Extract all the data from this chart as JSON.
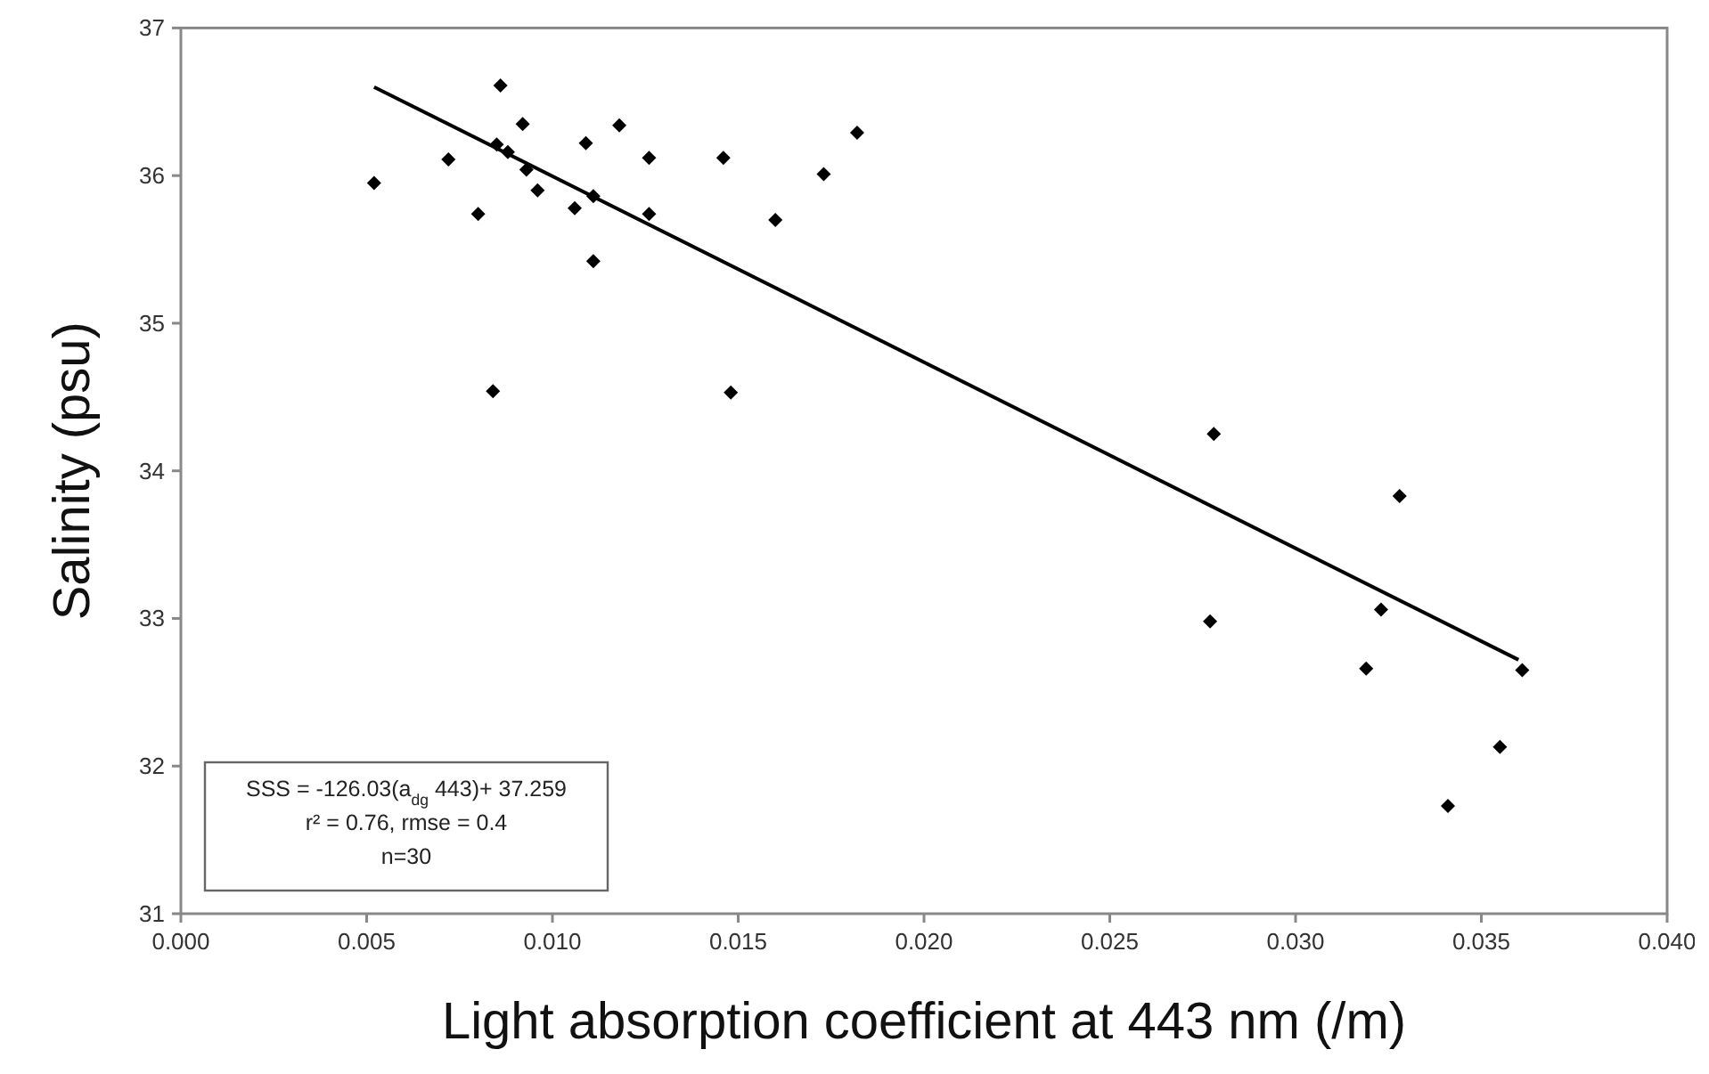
{
  "chart_data": {
    "type": "scatter",
    "xlabel": "Light absorption coefficient at 443 nm (/m)",
    "ylabel": "Salinity (psu)",
    "xlim": [
      0,
      0.04
    ],
    "xticks": [
      {
        "value": 0,
        "label": "0.000"
      },
      {
        "value": 0.005,
        "label": "0.005"
      },
      {
        "value": 0.01,
        "label": "0.010"
      },
      {
        "value": 0.015,
        "label": "0.015"
      },
      {
        "value": 0.02,
        "label": "0.020"
      },
      {
        "value": 0.025,
        "label": "0.025"
      },
      {
        "value": 0.03,
        "label": "0.030"
      },
      {
        "value": 0.035,
        "label": "0.035"
      },
      {
        "value": 0.04,
        "label": "0.040"
      }
    ],
    "ylim": [
      31,
      37
    ],
    "yticks": [
      31,
      32,
      33,
      34,
      35,
      36,
      37
    ],
    "grid": false,
    "series": [
      {
        "color": "#000000",
        "marker": "diamond",
        "x": [
          0.0052,
          0.0086,
          0.0092,
          0.0085,
          0.0088,
          0.0093,
          0.0096,
          0.0072,
          0.008,
          0.0084,
          0.0109,
          0.0118,
          0.0106,
          0.0111,
          0.0111,
          0.0126,
          0.0126,
          0.0146,
          0.0148,
          0.016,
          0.0173,
          0.0182,
          0.0277,
          0.0323,
          0.0319,
          0.0361,
          0.0355,
          0.0341,
          0.0278,
          0.0328
        ],
        "values": [
          35.95,
          36.61,
          36.35,
          36.21,
          36.16,
          36.04,
          35.9,
          36.11,
          35.74,
          34.54,
          36.22,
          36.34,
          35.78,
          35.86,
          35.42,
          36.12,
          35.74,
          36.12,
          34.53,
          35.7,
          36.01,
          36.29,
          32.98,
          33.06,
          32.66,
          32.65,
          32.13,
          31.73,
          34.25,
          33.83
        ]
      },
      {
        "type": "line",
        "marker": "none",
        "color": "#000000",
        "x": [
          0.0052,
          0.036
        ],
        "values": [
          36.6,
          32.72
        ]
      }
    ],
    "annotations": [
      "SSS = -126.03(a$_{dg}$ 443)+ 37.259",
      "r² = 0.76, rmse = 0.4",
      "n=30"
    ]
  }
}
